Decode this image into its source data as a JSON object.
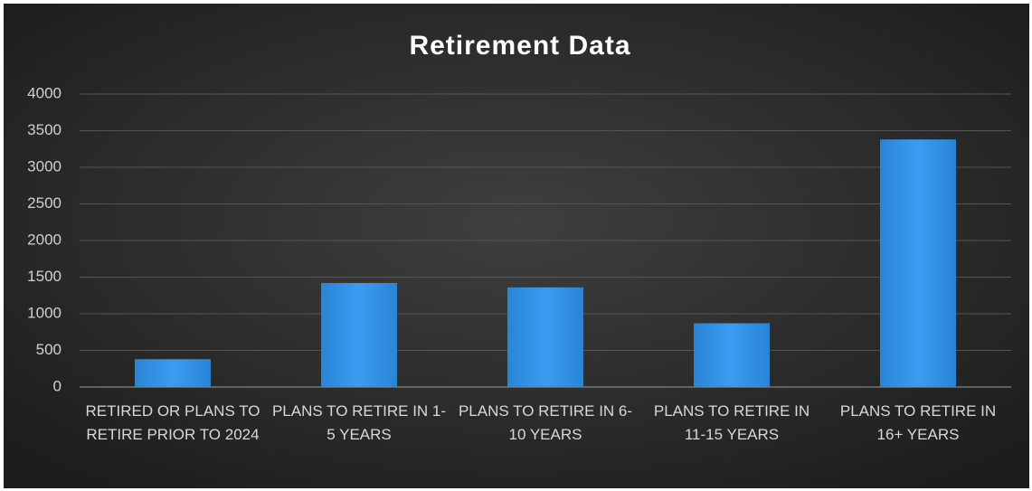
{
  "chart_data": {
    "type": "bar",
    "title": "Retirement Data",
    "categories": [
      "RETIRED OR PLANS TO RETIRE PRIOR TO 2024",
      "PLANS TO RETIRE IN 1-5 YEARS",
      "PLANS TO RETIRE IN 6-10 YEARS",
      "PLANS TO RETIRE IN 11-15 YEARS",
      "PLANS TO RETIRE IN 16+ YEARS"
    ],
    "values": [
      380,
      1420,
      1360,
      870,
      3380
    ],
    "color": "#2f8fe3",
    "ylim": [
      0,
      4000
    ],
    "yticks": [
      0,
      500,
      1000,
      1500,
      2000,
      2500,
      3000,
      3500,
      4000
    ],
    "grid": true
  }
}
